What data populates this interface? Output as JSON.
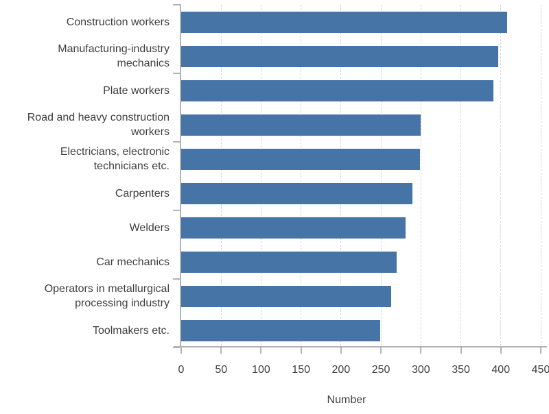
{
  "chart_data": {
    "type": "bar",
    "orientation": "horizontal",
    "title": "",
    "xlabel": "Number",
    "ylabel": "",
    "categories": [
      "Construction workers",
      "Manufacturing-industry\nmechanics",
      "Plate workers",
      "Road and heavy construction\nworkers",
      "Electricians, electronic\ntechnicians etc.",
      "Carpenters",
      "Welders",
      "Car mechanics",
      "Operators in metallurgical\nprocessing industry",
      "Toolmakers etc."
    ],
    "values": [
      408,
      397,
      391,
      300,
      299,
      289,
      281,
      270,
      263,
      249
    ],
    "xlim": [
      0,
      450
    ],
    "xticks": [
      0,
      50,
      100,
      150,
      200,
      250,
      300,
      350,
      400,
      450
    ],
    "grid": "vertical-dashed",
    "legend": null
  },
  "colors": {
    "bar": "#4674a6",
    "text": "#3f3f3f",
    "axis": "#b3b3b3",
    "gridline": "#d5d5d5",
    "background": "#ffffff"
  }
}
